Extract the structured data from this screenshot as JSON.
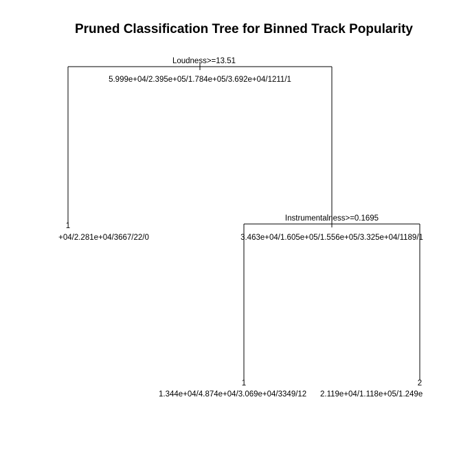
{
  "title": "Pruned Classification Tree for Binned Track Popularity",
  "nodes": {
    "root": {
      "split": "Loudness>=13.51",
      "stats": "5.999e+04/2.395e+05/1.784e+05/3.692e+04/1211/1"
    },
    "left_leaf": {
      "class": "1",
      "stats": "+04/2.281e+04/3667/22/0"
    },
    "right_internal": {
      "split": "Instrumentalness>=0.1695",
      "stats": "3.463e+04/1.605e+05/1.556e+05/3.325e+04/1189/1"
    },
    "right_left_leaf": {
      "class": "1",
      "stats": "1.344e+04/4.874e+04/3.069e+04/3349/12"
    },
    "right_right_leaf": {
      "class": "2",
      "stats": "2.119e+04/1.118e+05/1.249e"
    }
  }
}
